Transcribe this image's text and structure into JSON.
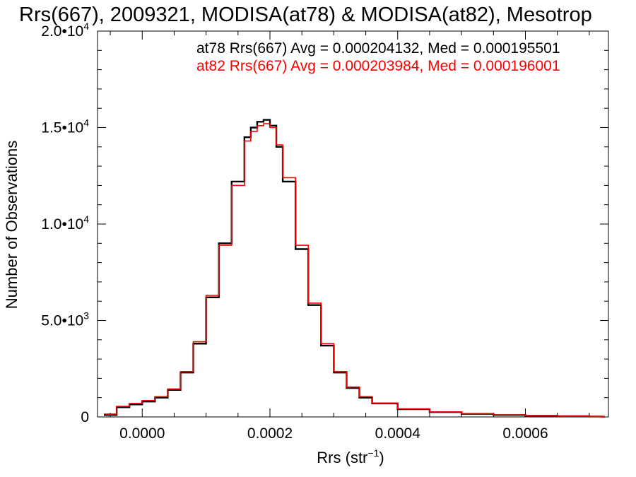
{
  "colors": {
    "at78": "#000000",
    "at82": "#ff0000",
    "axis": "#000000"
  },
  "chart_data": {
    "type": "line",
    "title": "Rrs(667), 2009321, MODISA(at78) & MODISA(at82), Mesotrop",
    "xlabel": {
      "main": "Rrs (str",
      "sup": "−1",
      "close": ")"
    },
    "ylabel": "Number of Observations",
    "xlim": [
      -7e-05,
      0.00073
    ],
    "ylim": [
      0,
      20000
    ],
    "x_ticks": [
      {
        "value": 0.0,
        "label": "0.0000"
      },
      {
        "value": 0.0002,
        "label": "0.0002"
      },
      {
        "value": 0.0004,
        "label": "0.0004"
      },
      {
        "value": 0.0006,
        "label": "0.0006"
      }
    ],
    "y_ticks": [
      {
        "value": 0,
        "label": "0",
        "sup": ""
      },
      {
        "value": 5000,
        "label": "5.0•10",
        "sup": "3"
      },
      {
        "value": 10000,
        "label": "1.0•10",
        "sup": "4"
      },
      {
        "value": 15000,
        "label": "1.5•10",
        "sup": "4"
      },
      {
        "value": 20000,
        "label": "2.0•10",
        "sup": "4"
      }
    ],
    "stats": [
      "at78 Rrs(667) Avg = 0.000204132, Med = 0.000195501",
      "at82 Rrs(667) Avg = 0.000203984, Med = 0.000196001"
    ],
    "series": [
      {
        "name": "at78",
        "x": [
          -6e-05,
          -4e-05,
          -2e-05,
          0.0,
          2e-05,
          4e-05,
          6e-05,
          8e-05,
          0.0001,
          0.00012,
          0.00014,
          0.00016,
          0.00017,
          0.00018,
          0.00019,
          0.0002,
          0.00021,
          0.00022,
          0.00024,
          0.00026,
          0.00028,
          0.0003,
          0.00032,
          0.00034,
          0.00036,
          0.0004,
          0.00045,
          0.0005,
          0.00055,
          0.0006,
          0.00065,
          0.0007,
          0.00072
        ],
        "y": [
          100,
          500,
          650,
          800,
          1000,
          1400,
          2300,
          3800,
          6200,
          9000,
          12200,
          14500,
          15000,
          15300,
          15400,
          15100,
          14000,
          12200,
          8700,
          5800,
          3700,
          2300,
          1500,
          1000,
          700,
          400,
          250,
          160,
          100,
          60,
          40,
          20,
          10
        ]
      },
      {
        "name": "at82",
        "x": [
          -6e-05,
          -4e-05,
          -2e-05,
          0.0,
          2e-05,
          4e-05,
          6e-05,
          8e-05,
          0.0001,
          0.00012,
          0.00014,
          0.00016,
          0.00017,
          0.00018,
          0.00019,
          0.0002,
          0.00021,
          0.00022,
          0.00024,
          0.00026,
          0.00028,
          0.0003,
          0.00032,
          0.00034,
          0.00036,
          0.0004,
          0.00045,
          0.0005,
          0.00055,
          0.0006,
          0.00065,
          0.0007,
          0.00072
        ],
        "y": [
          150,
          550,
          700,
          850,
          1050,
          1450,
          2350,
          3900,
          6300,
          8900,
          12000,
          14300,
          14800,
          15100,
          15200,
          15000,
          14100,
          12400,
          8900,
          5900,
          3800,
          2350,
          1550,
          1050,
          720,
          420,
          260,
          170,
          105,
          65,
          40,
          20,
          10
        ]
      }
    ]
  }
}
